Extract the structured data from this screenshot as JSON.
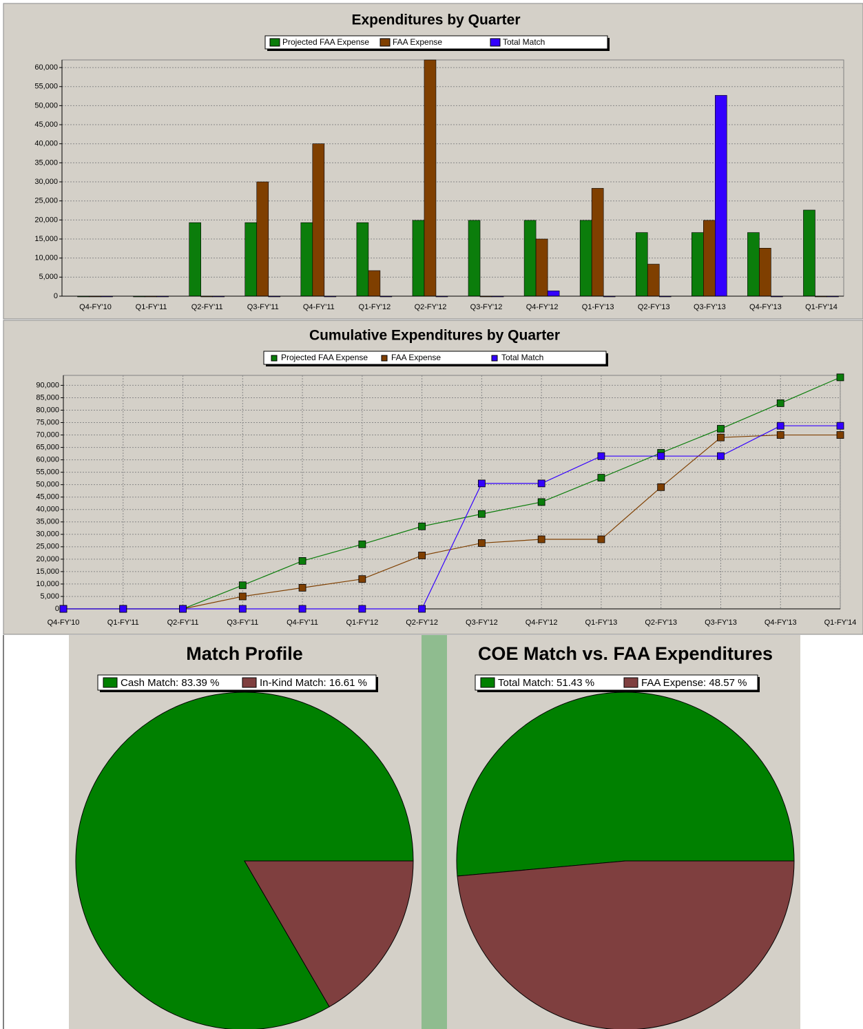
{
  "chart_data": [
    {
      "type": "bar",
      "title": "Expenditures by Quarter",
      "categories": [
        "Q4-FY'10",
        "Q1-FY'11",
        "Q2-FY'11",
        "Q3-FY'11",
        "Q4-FY'11",
        "Q1-FY'12",
        "Q2-FY'12",
        "Q3-FY'12",
        "Q4-FY'12",
        "Q1-FY'13",
        "Q2-FY'13",
        "Q3-FY'13",
        "Q4-FY'13",
        "Q1-FY'14"
      ],
      "series": [
        {
          "name": "Projected FAA Expense",
          "color": "#0b7d0b",
          "values": [
            0,
            0,
            19300,
            19300,
            19300,
            19300,
            19900,
            19900,
            19900,
            19900,
            16700,
            16700,
            16700,
            22600
          ]
        },
        {
          "name": "FAA Expense",
          "color": "#7f3f00",
          "values": [
            0,
            0,
            0,
            30000,
            40000,
            6700,
            62000,
            0,
            15000,
            28300,
            8400,
            19900,
            12600,
            0
          ]
        },
        {
          "name": "Total Match",
          "color": "#3300ff",
          "values": [
            0,
            0,
            0,
            0,
            0,
            0,
            0,
            0,
            1400,
            0,
            0,
            52700,
            0,
            0
          ]
        }
      ],
      "ylim": [
        0,
        62000
      ],
      "yticks": [
        0,
        {
          "value": 5000,
          "label": "5,000"
        },
        {
          "value": 10000,
          "label": "10,000"
        },
        {
          "value": 15000,
          "label": "15,000"
        },
        {
          "value": 20000,
          "label": "20,000"
        },
        {
          "value": 25000,
          "label": "25,000"
        },
        {
          "value": 30000,
          "label": "30,000"
        },
        {
          "value": 35000,
          "label": "35,000"
        },
        {
          "value": 40000,
          "label": "40,000"
        },
        {
          "value": 45000,
          "label": "45,000"
        },
        {
          "value": 50000,
          "label": "50,000"
        },
        {
          "value": 55000,
          "label": "55,000"
        },
        {
          "value": 60000,
          "label": "60,000"
        }
      ],
      "grid": true,
      "legend": "top"
    },
    {
      "type": "line",
      "title": "Cumulative Expenditures by Quarter",
      "categories": [
        "Q4-FY'10",
        "Q1-FY'11",
        "Q2-FY'11",
        "Q3-FY'11",
        "Q4-FY'11",
        "Q1-FY'12",
        "Q2-FY'12",
        "Q3-FY'12",
        "Q4-FY'12",
        "Q1-FY'13",
        "Q2-FY'13",
        "Q3-FY'13",
        "Q4-FY'13",
        "Q1-FY'14"
      ],
      "series": [
        {
          "name": "Projected FAA Expense",
          "color": "#0b7d0b",
          "values": [
            0,
            0,
            0,
            9500,
            19300,
            26000,
            33200,
            38200,
            43000,
            52800,
            62800,
            72500,
            82800,
            93200
          ]
        },
        {
          "name": "FAA Expense",
          "color": "#7f3f00",
          "values": [
            0,
            0,
            0,
            5000,
            8500,
            12000,
            21500,
            26500,
            28000,
            28000,
            49000,
            69000,
            70000,
            70000
          ]
        },
        {
          "name": "Total Match",
          "color": "#3300ff",
          "values": [
            0,
            0,
            0,
            0,
            0,
            0,
            0,
            50500,
            50500,
            61500,
            61500,
            61500,
            73700,
            73700
          ]
        }
      ],
      "ylim": [
        0,
        94000
      ],
      "yticks": [
        0,
        {
          "value": 5000,
          "label": "5,000"
        },
        {
          "value": 10000,
          "label": "10,000"
        },
        {
          "value": 15000,
          "label": "15,000"
        },
        {
          "value": 20000,
          "label": "20,000"
        },
        {
          "value": 25000,
          "label": "25,000"
        },
        {
          "value": 30000,
          "label": "30,000"
        },
        {
          "value": 35000,
          "label": "35,000"
        },
        {
          "value": 40000,
          "label": "40,000"
        },
        {
          "value": 45000,
          "label": "45,000"
        },
        {
          "value": 50000,
          "label": "50,000"
        },
        {
          "value": 55000,
          "label": "55,000"
        },
        {
          "value": 60000,
          "label": "60,000"
        },
        {
          "value": 65000,
          "label": "65,000"
        },
        {
          "value": 70000,
          "label": "70,000"
        },
        {
          "value": 75000,
          "label": "75,000"
        },
        {
          "value": 80000,
          "label": "80,000"
        },
        {
          "value": 85000,
          "label": "85,000"
        },
        {
          "value": 90000,
          "label": "90,000"
        }
      ],
      "grid": true,
      "legend": "top"
    },
    {
      "type": "pie",
      "title": "Match Profile",
      "values": [
        83.39,
        16.61
      ],
      "value_labels": [
        "Cash Match: 83.39 %",
        "In-Kind Match: 16.61 %"
      ],
      "colors": [
        "#008000",
        "#7f3f3f"
      ],
      "legend": "top"
    },
    {
      "type": "pie",
      "title": "COE Match vs. FAA Expenditures",
      "values": [
        51.43,
        48.57
      ],
      "value_labels": [
        "Total Match: 51.43 %",
        "FAA Expense: 48.57 %"
      ],
      "colors": [
        "#008000",
        "#7f3f3f"
      ],
      "legend": "top"
    }
  ]
}
